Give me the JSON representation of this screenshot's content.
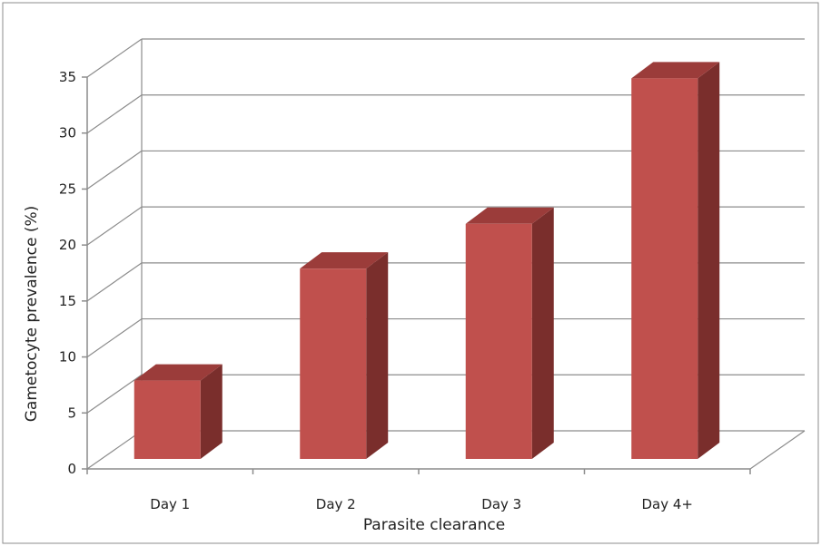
{
  "chart_data": {
    "type": "bar",
    "style": "3d-column",
    "title": "",
    "xlabel": "Parasite clearance",
    "ylabel": "Gametocyte prevalence (%)",
    "categories": [
      "Day 1",
      "Day 2",
      "Day 3",
      "Day 4+"
    ],
    "values": [
      7,
      17,
      21,
      34
    ],
    "ylim": [
      0,
      35
    ],
    "yticks": [
      "0",
      "5",
      "10",
      "15",
      "20",
      "25",
      "30",
      "35"
    ],
    "grid": true,
    "legend": "none",
    "colors": {
      "bar_front": "#c0504d",
      "bar_top": "#9b3c3a",
      "bar_side": "#7a2e2c",
      "grid": "#8c8c8c",
      "frame": "#8c8c8c"
    }
  }
}
